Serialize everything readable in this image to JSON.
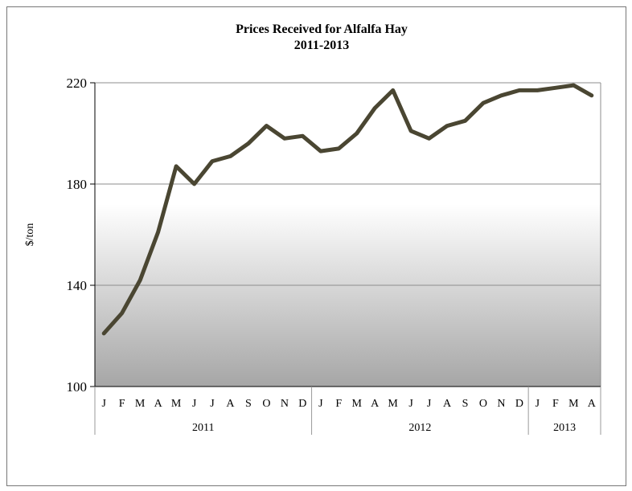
{
  "chart_data": {
    "type": "line",
    "title": [
      "Prices Received for Alfalfa Hay",
      "2011-2013"
    ],
    "ylabel": "$/ton",
    "xlabel": "",
    "ylim": [
      100,
      220
    ],
    "yticks": [
      100,
      140,
      180,
      220
    ],
    "grid": true,
    "legend": "none",
    "categories": [
      "J",
      "F",
      "M",
      "A",
      "M",
      "J",
      "J",
      "A",
      "S",
      "O",
      "N",
      "D",
      "J",
      "F",
      "M",
      "A",
      "M",
      "J",
      "J",
      "A",
      "S",
      "O",
      "N",
      "D",
      "J",
      "F",
      "M",
      "A"
    ],
    "years": [
      {
        "label": "2011",
        "count": 12
      },
      {
        "label": "2012",
        "count": 12
      },
      {
        "label": "2013",
        "count": 4
      }
    ],
    "series": [
      {
        "values": [
          121,
          129,
          142,
          161,
          187,
          180,
          189,
          191,
          196,
          203,
          198,
          199,
          193,
          194,
          200,
          210,
          217,
          201,
          198,
          203,
          205,
          212,
          215,
          217,
          217,
          218,
          219,
          215
        ]
      }
    ],
    "colors": {
      "line": "#4a4632",
      "grid": "#8c8c8c",
      "axis": "#000000",
      "gradient_top": "#ffffff",
      "gradient_bottom": "#a6a6a6"
    }
  }
}
